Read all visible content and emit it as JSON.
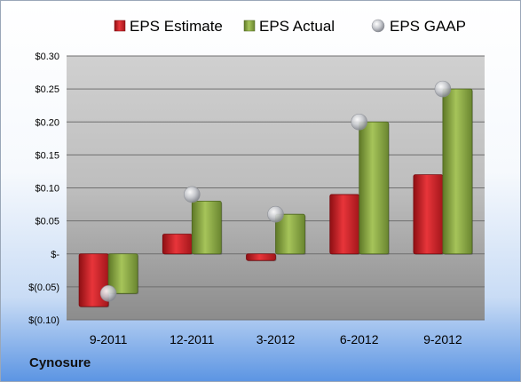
{
  "company": "Cynosure",
  "chart_data": {
    "type": "bar",
    "title": "",
    "xlabel": "",
    "ylabel": "",
    "categories": [
      "9-2011",
      "12-2011",
      "3-2012",
      "6-2012",
      "9-2012"
    ],
    "series": [
      {
        "name": "EPS Estimate",
        "kind": "bar",
        "color": "#d01f24",
        "values": [
          -0.08,
          0.03,
          -0.01,
          0.09,
          0.12
        ]
      },
      {
        "name": "EPS Actual",
        "kind": "bar",
        "color": "#89a83c",
        "values": [
          -0.06,
          0.08,
          0.06,
          0.2,
          0.25
        ]
      },
      {
        "name": "EPS GAAP",
        "kind": "marker",
        "color": "#b9bcc2",
        "values": [
          -0.06,
          0.09,
          0.06,
          0.2,
          0.25
        ]
      }
    ],
    "y_ticks": [
      {
        "value": 0.3,
        "label": "$0.30"
      },
      {
        "value": 0.25,
        "label": "$0.25"
      },
      {
        "value": 0.2,
        "label": "$0.20"
      },
      {
        "value": 0.15,
        "label": "$0.15"
      },
      {
        "value": 0.1,
        "label": "$0.10"
      },
      {
        "value": 0.05,
        "label": "$0.05"
      },
      {
        "value": 0.0,
        "label": "$-"
      },
      {
        "value": -0.05,
        "label": "$(0.05)"
      },
      {
        "value": -0.1,
        "label": "$(0.10)"
      }
    ],
    "ylim": [
      -0.1,
      0.3
    ],
    "grid": true,
    "legend_position": "top"
  }
}
